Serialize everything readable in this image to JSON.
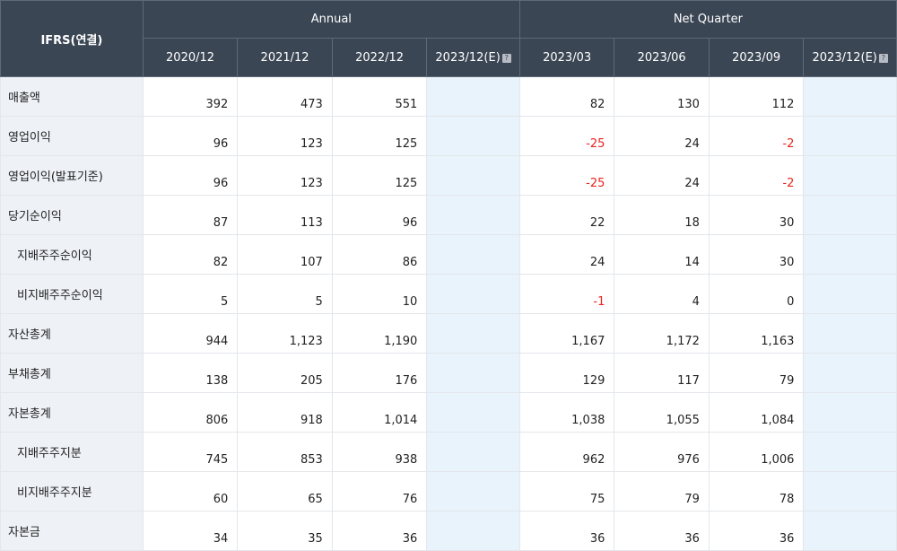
{
  "header": {
    "ifrs_label": "IFRS(연결)",
    "annual_label": "Annual",
    "quarter_label": "Net Quarter",
    "annual_periods": [
      "2020/12",
      "2021/12",
      "2022/12",
      "2023/12(E)"
    ],
    "quarter_periods": [
      "2023/03",
      "2023/06",
      "2023/09",
      "2023/12(E)"
    ],
    "estimate_icon": "question-icon"
  },
  "rows": [
    {
      "label": "매출액",
      "indent": false,
      "annual": [
        "392",
        "473",
        "551",
        ""
      ],
      "quarter": [
        "82",
        "130",
        "112",
        ""
      ]
    },
    {
      "label": "영업이익",
      "indent": false,
      "annual": [
        "96",
        "123",
        "125",
        ""
      ],
      "quarter": [
        "-25",
        "24",
        "-2",
        ""
      ]
    },
    {
      "label": "영업이익(발표기준)",
      "indent": false,
      "annual": [
        "96",
        "123",
        "125",
        ""
      ],
      "quarter": [
        "-25",
        "24",
        "-2",
        ""
      ]
    },
    {
      "label": "당기순이익",
      "indent": false,
      "annual": [
        "87",
        "113",
        "96",
        ""
      ],
      "quarter": [
        "22",
        "18",
        "30",
        ""
      ]
    },
    {
      "label": "지배주주순이익",
      "indent": true,
      "annual": [
        "82",
        "107",
        "86",
        ""
      ],
      "quarter": [
        "24",
        "14",
        "30",
        ""
      ]
    },
    {
      "label": "비지배주주순이익",
      "indent": true,
      "annual": [
        "5",
        "5",
        "10",
        ""
      ],
      "quarter": [
        "-1",
        "4",
        "0",
        ""
      ]
    },
    {
      "label": "자산총계",
      "indent": false,
      "annual": [
        "944",
        "1,123",
        "1,190",
        ""
      ],
      "quarter": [
        "1,167",
        "1,172",
        "1,163",
        ""
      ]
    },
    {
      "label": "부채총계",
      "indent": false,
      "annual": [
        "138",
        "205",
        "176",
        ""
      ],
      "quarter": [
        "129",
        "117",
        "79",
        ""
      ]
    },
    {
      "label": "자본총계",
      "indent": false,
      "annual": [
        "806",
        "918",
        "1,014",
        ""
      ],
      "quarter": [
        "1,038",
        "1,055",
        "1,084",
        ""
      ]
    },
    {
      "label": "지배주주지분",
      "indent": true,
      "annual": [
        "745",
        "853",
        "938",
        ""
      ],
      "quarter": [
        "962",
        "976",
        "1,006",
        ""
      ]
    },
    {
      "label": "비지배주주지분",
      "indent": true,
      "annual": [
        "60",
        "65",
        "76",
        ""
      ],
      "quarter": [
        "75",
        "79",
        "78",
        ""
      ]
    },
    {
      "label": "자본금",
      "indent": false,
      "annual": [
        "34",
        "35",
        "36",
        ""
      ],
      "quarter": [
        "36",
        "36",
        "36",
        ""
      ]
    }
  ],
  "colors": {
    "header_bg": "#3b4654",
    "label_bg": "#eef1f6",
    "estimate_bg": "#e8f3fb",
    "negative": "#e8241d"
  }
}
